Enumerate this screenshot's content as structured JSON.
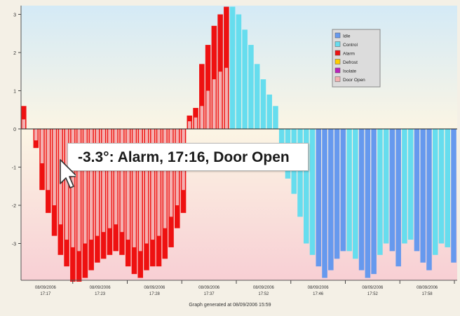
{
  "chart_data": {
    "type": "bar",
    "title": "",
    "xlabel": "",
    "ylabel": "",
    "ylim": [
      -4,
      3.3
    ],
    "y_ticks": [
      "3",
      "2",
      "1",
      "0",
      "-1",
      "-2",
      "-3"
    ],
    "x_tick_labels": [
      {
        "date": "08/09/2006",
        "time": "17:17"
      },
      {
        "date": "08/09/2006",
        "time": "17:23"
      },
      {
        "date": "08/09/2006",
        "time": "17:28"
      },
      {
        "date": "08/09/2006",
        "time": "17:37"
      },
      {
        "date": "08/09/2006",
        "time": "17:52"
      },
      {
        "date": "08/09/2006",
        "time": "17:46"
      },
      {
        "date": "08/09/2006",
        "time": "17:52"
      },
      {
        "date": "08/09/2006",
        "time": "17:58"
      }
    ],
    "legend": {
      "position": "top-right",
      "entries": [
        {
          "name": "Idle",
          "color": "#6699ee"
        },
        {
          "name": "Control",
          "color": "#66ddee"
        },
        {
          "name": "Alarm",
          "color": "#ee1111"
        },
        {
          "name": "Defrost",
          "color": "#ffcc00"
        },
        {
          "name": "Isolate",
          "color": "#bb22bb"
        },
        {
          "name": "Door Open",
          "color": "#f4b0b0"
        }
      ]
    },
    "bars": [
      {
        "state": "Alarm",
        "value": 0.6,
        "door": 0.25
      },
      {
        "state": "Idle",
        "value": 0,
        "door": 0
      },
      {
        "state": "Alarm",
        "value": -0.5,
        "door": -0.3
      },
      {
        "state": "Alarm",
        "value": -1.6,
        "door": -0.9
      },
      {
        "state": "Alarm",
        "value": -2.2,
        "door": -1.6
      },
      {
        "state": "Alarm",
        "value": -2.8,
        "door": -2.0
      },
      {
        "state": "Alarm",
        "value": -3.3,
        "door": -2.5
      },
      {
        "state": "Alarm",
        "value": -3.6,
        "door": -2.9
      },
      {
        "state": "Alarm",
        "value": -4.0,
        "door": -3.1
      },
      {
        "state": "Alarm",
        "value": -4.0,
        "door": -3.2
      },
      {
        "state": "Alarm",
        "value": -3.9,
        "door": -3.0
      },
      {
        "state": "Alarm",
        "value": -3.7,
        "door": -2.9
      },
      {
        "state": "Alarm",
        "value": -3.5,
        "door": -2.8
      },
      {
        "state": "Alarm",
        "value": -3.4,
        "door": -2.7
      },
      {
        "state": "Alarm",
        "value": -3.3,
        "door": -2.6
      },
      {
        "state": "Alarm",
        "value": -3.2,
        "door": -2.5
      },
      {
        "state": "Alarm",
        "value": -3.3,
        "door": -2.7
      },
      {
        "state": "Alarm",
        "value": -3.6,
        "door": -2.9
      },
      {
        "state": "Alarm",
        "value": -3.8,
        "door": -3.1
      },
      {
        "state": "Alarm",
        "value": -3.9,
        "door": -3.2
      },
      {
        "state": "Alarm",
        "value": -3.7,
        "door": -3.0
      },
      {
        "state": "Alarm",
        "value": -3.6,
        "door": -2.9
      },
      {
        "state": "Alarm",
        "value": -3.6,
        "door": -2.8
      },
      {
        "state": "Alarm",
        "value": -3.4,
        "door": -2.6
      },
      {
        "state": "Alarm",
        "value": -3.1,
        "door": -2.3
      },
      {
        "state": "Alarm",
        "value": -2.6,
        "door": -2.0
      },
      {
        "state": "Alarm",
        "value": -2.2,
        "door": -1.6
      },
      {
        "state": "Alarm",
        "value": 0.35,
        "door": 0.2
      },
      {
        "state": "Alarm",
        "value": 0.55,
        "door": 0.3
      },
      {
        "state": "Alarm",
        "value": 1.7,
        "door": 0.6
      },
      {
        "state": "Alarm",
        "value": 2.2,
        "door": 1.0
      },
      {
        "state": "Alarm",
        "value": 2.7,
        "door": 1.3
      },
      {
        "state": "Alarm",
        "value": 3.0,
        "door": 1.5
      },
      {
        "state": "Alarm",
        "value": 3.2,
        "door": 1.6
      },
      {
        "state": "Control",
        "value": 3.2,
        "door": 0
      },
      {
        "state": "Control",
        "value": 3.0,
        "door": 0
      },
      {
        "state": "Control",
        "value": 2.6,
        "door": 0
      },
      {
        "state": "Control",
        "value": 2.2,
        "door": 0
      },
      {
        "state": "Control",
        "value": 1.7,
        "door": 0
      },
      {
        "state": "Control",
        "value": 1.3,
        "door": 0
      },
      {
        "state": "Control",
        "value": 0.9,
        "door": 0
      },
      {
        "state": "Control",
        "value": 0.6,
        "door": 0
      },
      {
        "state": "Control",
        "value": -0.4,
        "door": 0
      },
      {
        "state": "Control",
        "value": -1.3,
        "door": 0
      },
      {
        "state": "Control",
        "value": -1.7,
        "door": 0
      },
      {
        "state": "Control",
        "value": -2.3,
        "door": 0
      },
      {
        "state": "Control",
        "value": -3.0,
        "door": 0
      },
      {
        "state": "Control",
        "value": -3.3,
        "door": 0
      },
      {
        "state": "Idle",
        "value": -3.6,
        "door": 0
      },
      {
        "state": "Idle",
        "value": -3.9,
        "door": 0
      },
      {
        "state": "Idle",
        "value": -3.7,
        "door": 0
      },
      {
        "state": "Idle",
        "value": -3.4,
        "door": 0
      },
      {
        "state": "Idle",
        "value": -3.2,
        "door": 0
      },
      {
        "state": "Control",
        "value": -3.2,
        "door": 0
      },
      {
        "state": "Control",
        "value": -3.4,
        "door": 0
      },
      {
        "state": "Idle",
        "value": -3.7,
        "door": 0
      },
      {
        "state": "Idle",
        "value": -3.9,
        "door": 0
      },
      {
        "state": "Idle",
        "value": -3.8,
        "door": 0
      },
      {
        "state": "Control",
        "value": -3.3,
        "door": 0
      },
      {
        "state": "Control",
        "value": -3.0,
        "door": 0
      },
      {
        "state": "Idle",
        "value": -3.2,
        "door": 0
      },
      {
        "state": "Idle",
        "value": -3.6,
        "door": 0
      },
      {
        "state": "Control",
        "value": -3.0,
        "door": 0
      },
      {
        "state": "Control",
        "value": -2.9,
        "door": 0
      },
      {
        "state": "Idle",
        "value": -3.2,
        "door": 0
      },
      {
        "state": "Idle",
        "value": -3.5,
        "door": 0
      },
      {
        "state": "Idle",
        "value": -3.7,
        "door": 0
      },
      {
        "state": "Control",
        "value": -3.3,
        "door": 0
      },
      {
        "state": "Control",
        "value": -3.0,
        "door": 0
      },
      {
        "state": "Control",
        "value": -3.1,
        "door": 0
      },
      {
        "state": "Idle",
        "value": -3.5,
        "door": 0
      }
    ]
  },
  "tooltip": {
    "text": "-3.3°: Alarm, 17:16, Door Open"
  },
  "footer": {
    "text": "Graph generated at 08/09/2006 15:59"
  },
  "colors": {
    "Idle": "#6699ee",
    "Control": "#66ddee",
    "Alarm": "#ee1111",
    "Defrost": "#ffcc00",
    "Isolate": "#bb22bb",
    "Door Open": "#f4b0b0"
  },
  "icons": {
    "cursor": "arrow-cursor-icon"
  }
}
